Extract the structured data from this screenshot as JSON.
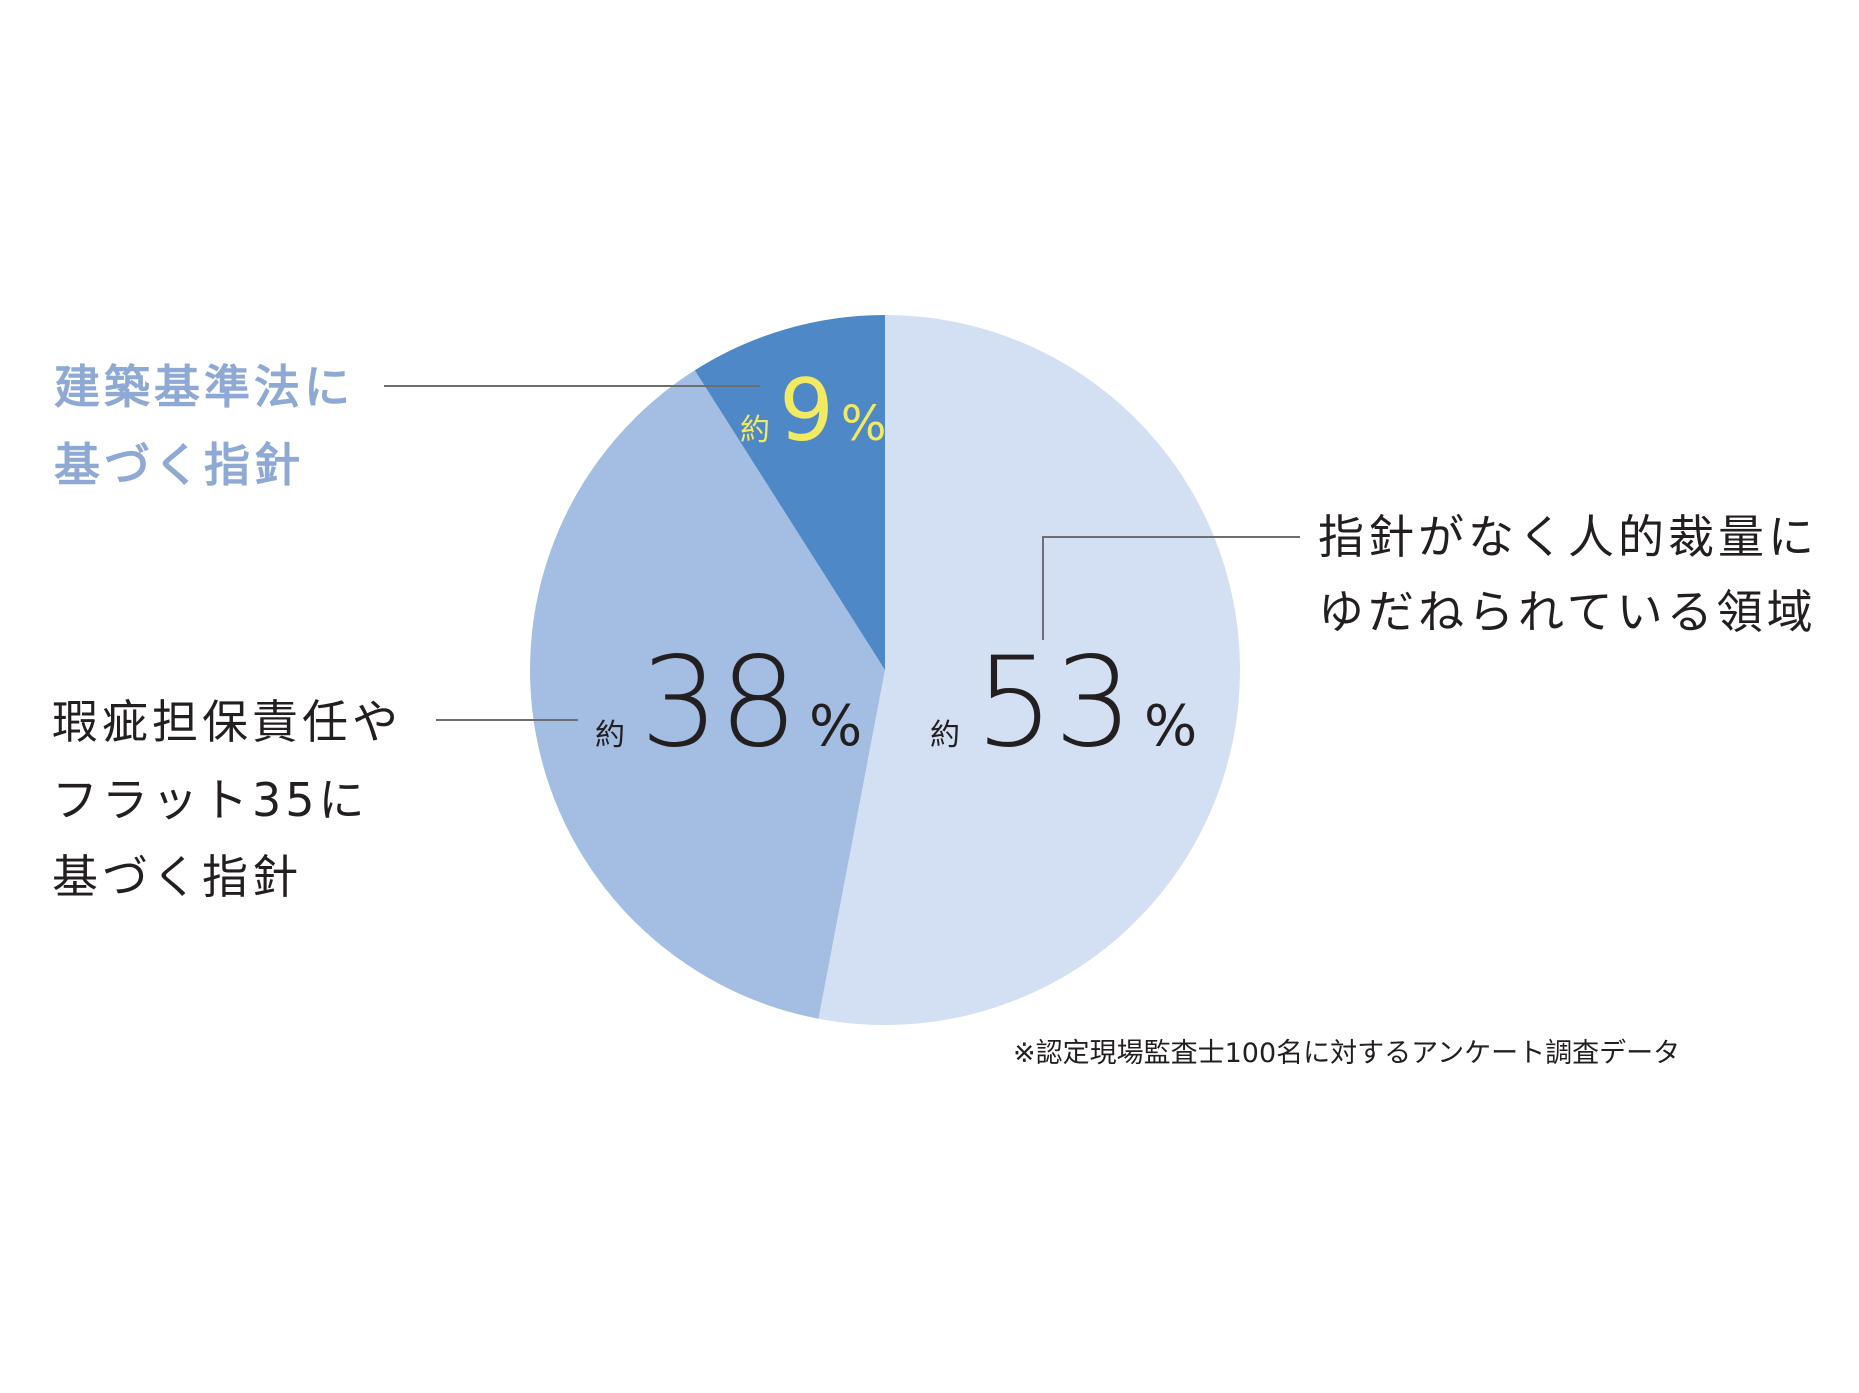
{
  "chart_data": {
    "type": "pie",
    "start_angle_deg": 0,
    "direction": "clockwise",
    "slices": [
      {
        "value": 53,
        "color": "#d3dff3",
        "label_lines": [
          "指針がなく人的裁量に",
          "ゆだねられている領域"
        ],
        "value_prefix": "約",
        "value_text": "53",
        "value_suffix": "%"
      },
      {
        "value": 38,
        "color": "#a3bde3",
        "label_lines": [
          "瑕疵担保責任や",
          "フラット35に",
          "基づく指針"
        ],
        "value_prefix": "約",
        "value_text": "38",
        "value_suffix": "%"
      },
      {
        "value": 9,
        "color": "#4f88c7",
        "label_lines": [
          "建築基準法に",
          "基づく指針"
        ],
        "value_prefix": "約",
        "value_text": "9",
        "value_suffix": "%"
      }
    ],
    "label_colors": {
      "dark_text": "#231f20",
      "highlight_label": "#8fa9d5",
      "highlight_value": "#f2ea62"
    },
    "footnote": "※認定現場監査士100名に対するアンケート調査データ"
  }
}
